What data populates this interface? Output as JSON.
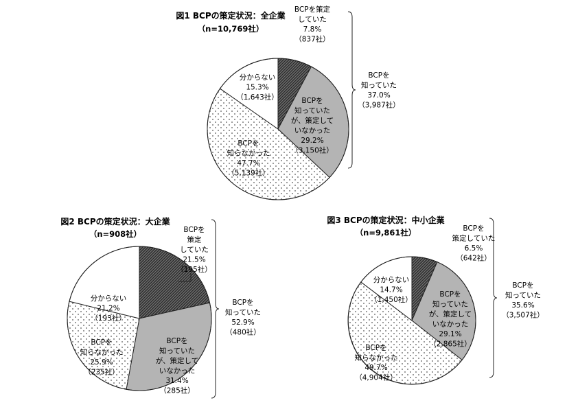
{
  "chart_data": [
    {
      "type": "pie",
      "title": "図1 BCPの策定状況：全企業",
      "subtitle": "（n=10,769社）",
      "slices": [
        {
          "key": "formulated",
          "label": [
            "BCPを策定",
            "していた"
          ],
          "value": 7.8,
          "pct": "7.8%",
          "count": "（837社）"
        },
        {
          "key": "known_not",
          "label": [
            "BCPを",
            "知っていた",
            "が、策定して",
            "いなかった"
          ],
          "value": 29.2,
          "pct": "29.2%",
          "count": "（3,150社）"
        },
        {
          "key": "not_known",
          "label": [
            "BCPを",
            "知らなかった"
          ],
          "value": 47.7,
          "pct": "47.7%",
          "count": "（5,139社）"
        },
        {
          "key": "unknown",
          "label": [
            "分からない"
          ],
          "value": 15.3,
          "pct": "15.3%",
          "count": "（1,643社）"
        }
      ],
      "bracket": {
        "label": [
          "BCPを",
          "知っていた"
        ],
        "pct": "37.0%",
        "count": "（3,987社）"
      }
    },
    {
      "type": "pie",
      "title": "図2 BCPの策定状況：大企業",
      "subtitle": "（n=908社）",
      "slices": [
        {
          "key": "formulated",
          "label": [
            "BCPを",
            "策定",
            "していた"
          ],
          "value": 21.5,
          "pct": "21.5%",
          "count": "（195社）"
        },
        {
          "key": "known_not",
          "label": [
            "BCPを",
            "知っていた",
            "が、策定して",
            "いなかった"
          ],
          "value": 31.4,
          "pct": "31.4%",
          "count": "（285社）"
        },
        {
          "key": "not_known",
          "label": [
            "BCPを",
            "知らなかった"
          ],
          "value": 25.9,
          "pct": "25.9%",
          "count": "（235社）"
        },
        {
          "key": "unknown",
          "label": [
            "分からない"
          ],
          "value": 21.2,
          "pct": "21.2%",
          "count": "（193社）"
        }
      ],
      "bracket": {
        "label": [
          "BCPを",
          "知っていた"
        ],
        "pct": "52.9%",
        "count": "（480社）"
      }
    },
    {
      "type": "pie",
      "title": "図3 BCPの策定状況：中小企業",
      "subtitle": "（n=9,861社）",
      "slices": [
        {
          "key": "formulated",
          "label": [
            "BCPを",
            "策定していた"
          ],
          "value": 6.5,
          "pct": "6.5%",
          "count": "（642社）"
        },
        {
          "key": "known_not",
          "label": [
            "BCPを",
            "知っていた",
            "が、策定して",
            "いなかった"
          ],
          "value": 29.1,
          "pct": "29.1%",
          "count": "（2,865社）"
        },
        {
          "key": "not_known",
          "label": [
            "BCPを",
            "知らなかった"
          ],
          "value": 49.7,
          "pct": "49.7%",
          "count": "（4,904社）"
        },
        {
          "key": "unknown",
          "label": [
            "分からない"
          ],
          "value": 14.7,
          "pct": "14.7%",
          "count": "（1,450社）"
        }
      ],
      "bracket": {
        "label": [
          "BCPを",
          "知っていた"
        ],
        "pct": "35.6%",
        "count": "（3,507社）"
      }
    }
  ]
}
